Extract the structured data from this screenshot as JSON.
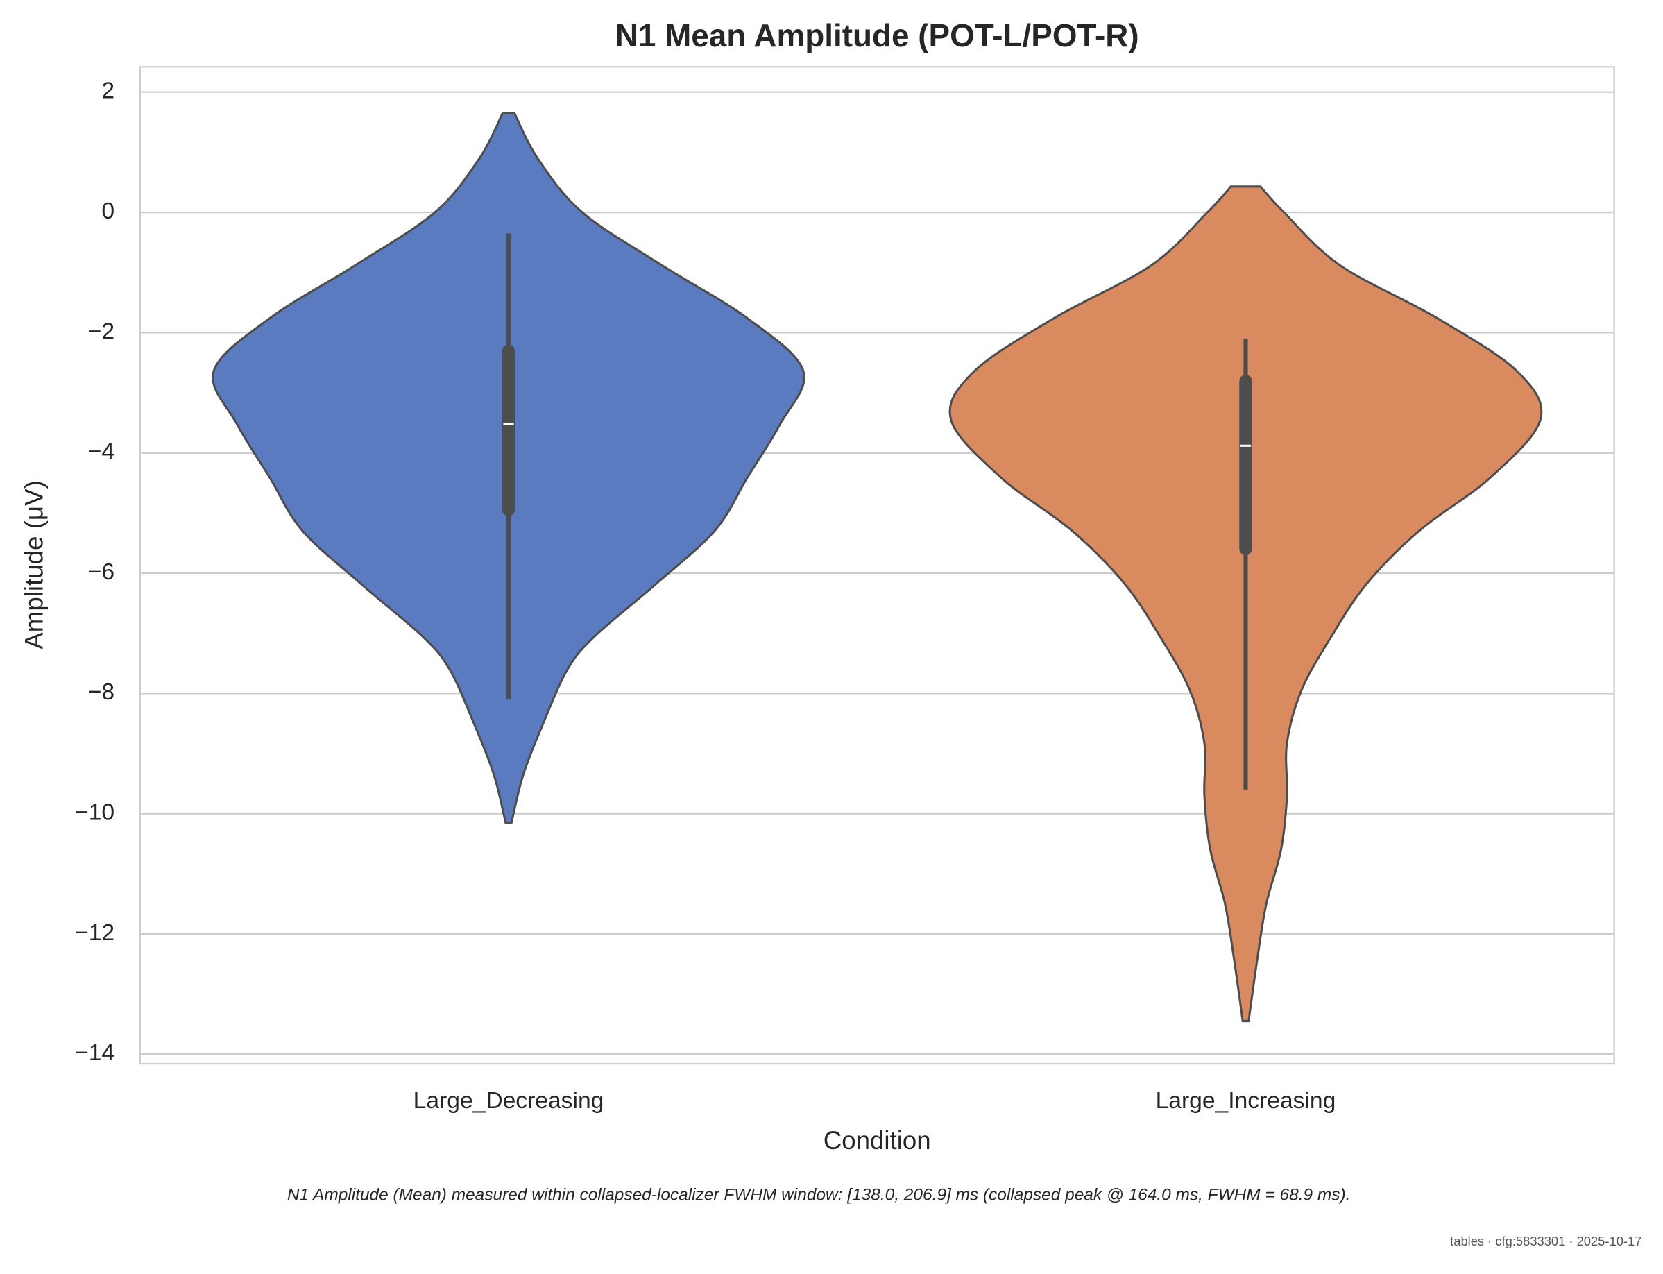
{
  "chart_data": {
    "type": "violin",
    "title": "N1 Mean Amplitude (POT-L/POT-R)",
    "x_label": "Condition",
    "y_label": "Amplitude (μV)",
    "caption": "N1 Amplitude (Mean) measured within collapsed-localizer FWHM window: [138.0, 206.9] ms (collapsed peak @ 164.0 ms, FWHM = 68.9 ms).",
    "footer": "tables · cfg:5833301 · 2025-10-17",
    "categories": [
      "Large_Decreasing",
      "Large_Increasing"
    ],
    "colors": [
      "#5a7bbf",
      "#d98a5f"
    ],
    "violins": [
      {
        "kde_y": [
          1.65,
          0.89,
          0,
          -0.88,
          -1.76,
          -2.64,
          -3.53,
          -4.41,
          -5.29,
          -6.18,
          -7.06,
          -7.6,
          -8.47,
          -9.35,
          -10.15
        ],
        "kde_width": [
          0.02,
          0.1,
          0.25,
          0.52,
          0.81,
          1.0,
          0.92,
          0.81,
          0.7,
          0.5,
          0.29,
          0.2,
          0.12,
          0.05,
          0.01
        ],
        "whisker": [
          -8.1,
          -0.35
        ],
        "box": [
          -5.05,
          -2.2
        ],
        "median": -3.52
      },
      {
        "kde_y": [
          0.43,
          0,
          -0.88,
          -1.76,
          -2.64,
          -3.44,
          -4.41,
          -5.29,
          -6.18,
          -7.06,
          -7.94,
          -8.83,
          -9.71,
          -10.6,
          -11.5,
          -12.4,
          -13.45
        ],
        "kde_width": [
          0.05,
          0.13,
          0.32,
          0.65,
          0.92,
          1.0,
          0.83,
          0.59,
          0.41,
          0.29,
          0.19,
          0.14,
          0.14,
          0.12,
          0.07,
          0.04,
          0.01
        ],
        "whisker": [
          -9.6,
          -2.1
        ],
        "box": [
          -5.7,
          -2.7
        ],
        "median": -3.88
      }
    ],
    "ylim": [
      -14.16,
      2.42
    ],
    "yticks": [
      {
        "value": -14,
        "label": "−14"
      },
      {
        "value": -12,
        "label": "−12"
      },
      {
        "value": -10,
        "label": "−10"
      },
      {
        "value": -8,
        "label": "−8"
      },
      {
        "value": -6,
        "label": "−6"
      },
      {
        "value": -4,
        "label": "−4"
      },
      {
        "value": -2,
        "label": "−2"
      },
      0,
      2
    ],
    "grid": true
  }
}
